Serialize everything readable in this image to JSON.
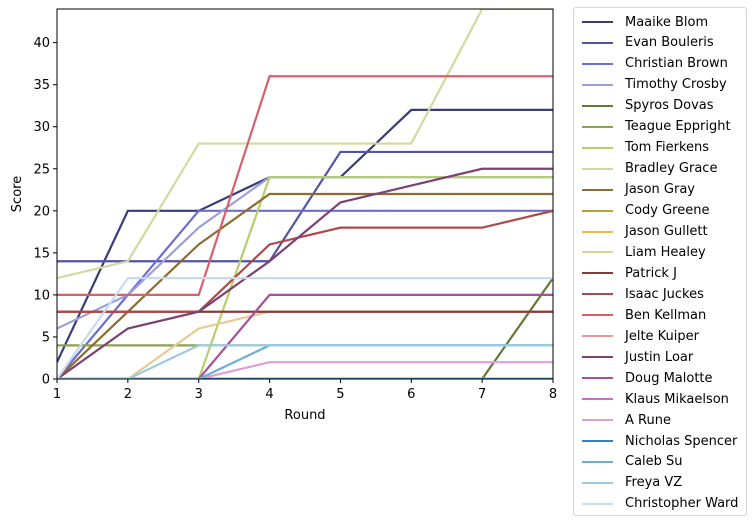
{
  "chart_data": {
    "type": "line",
    "title": "",
    "xlabel": "Round",
    "ylabel": "Score",
    "x": [
      1,
      2,
      3,
      4,
      5,
      6,
      7,
      8
    ],
    "xlim": [
      1,
      8
    ],
    "ylim": [
      0,
      44
    ],
    "x_ticks": [
      "1",
      "2",
      "3",
      "4",
      "5",
      "6",
      "7",
      "8"
    ],
    "y_ticks": [
      "0",
      "5",
      "10",
      "15",
      "20",
      "25",
      "30",
      "35",
      "40"
    ],
    "grid": false,
    "legend_position": "outside right",
    "series": [
      {
        "name": "Maaike Blom",
        "color": "#393b79",
        "values": [
          2,
          20,
          20,
          24,
          24,
          32,
          32,
          32
        ]
      },
      {
        "name": "Evan Bouleris",
        "color": "#5254a3",
        "values": [
          14,
          14,
          14,
          14,
          27,
          27,
          27,
          27
        ]
      },
      {
        "name": "Christian Brown",
        "color": "#6b6ecf",
        "values": [
          0,
          10,
          20,
          20,
          20,
          20,
          20,
          20
        ]
      },
      {
        "name": "Timothy Crosby",
        "color": "#9c9ede",
        "values": [
          6,
          10,
          18,
          24,
          24,
          24,
          24,
          24
        ]
      },
      {
        "name": "Spyros Dovas",
        "color": "#637939",
        "values": [
          0,
          0,
          0,
          0,
          0,
          0,
          0,
          12
        ]
      },
      {
        "name": "Teague Eppright",
        "color": "#8ca252",
        "values": [
          4,
          4,
          4,
          4,
          4,
          4,
          4,
          4
        ]
      },
      {
        "name": "Tom Fierkens",
        "color": "#b5cf6b",
        "values": [
          0,
          0,
          0,
          24,
          24,
          24,
          24,
          24
        ]
      },
      {
        "name": "Bradley Grace",
        "color": "#cedb9c",
        "values": [
          12,
          14,
          28,
          28,
          28,
          28,
          44,
          44
        ]
      },
      {
        "name": "Jason Gray",
        "color": "#8c6d31",
        "values": [
          0,
          8,
          16,
          22,
          22,
          22,
          22,
          22
        ]
      },
      {
        "name": "Cody Greene",
        "color": "#bd9e39",
        "values": [
          0,
          0,
          0,
          0,
          0,
          0,
          0,
          0
        ]
      },
      {
        "name": "Jason Gullett",
        "color": "#e7ba52",
        "values": [
          0,
          0,
          0,
          0,
          0,
          0,
          0,
          0
        ]
      },
      {
        "name": "Liam Healey",
        "color": "#e7cb94",
        "values": [
          0,
          0,
          6,
          8,
          8,
          8,
          8,
          8
        ]
      },
      {
        "name": "Patrick J",
        "color": "#843c39",
        "values": [
          8,
          8,
          8,
          8,
          8,
          8,
          8,
          8
        ]
      },
      {
        "name": "Isaac Juckes",
        "color": "#ad494a",
        "values": [
          8,
          8,
          8,
          16,
          18,
          18,
          18,
          20
        ]
      },
      {
        "name": "Ben Kellman",
        "color": "#d6616b",
        "values": [
          10,
          10,
          10,
          36,
          36,
          36,
          36,
          36
        ]
      },
      {
        "name": "Jelte Kuiper",
        "color": "#e7969c",
        "values": [
          0,
          0,
          0,
          0,
          0,
          0,
          0,
          0
        ]
      },
      {
        "name": "Justin Loar",
        "color": "#7b4173",
        "values": [
          0,
          6,
          8,
          14,
          21,
          23,
          25,
          25
        ]
      },
      {
        "name": "Doug Malotte",
        "color": "#a55194",
        "values": [
          0,
          0,
          0,
          10,
          10,
          10,
          10,
          10
        ]
      },
      {
        "name": "Klaus Mikaelson",
        "color": "#ce6dbd",
        "values": [
          0,
          0,
          0,
          0,
          0,
          0,
          0,
          0
        ]
      },
      {
        "name": "A Rune",
        "color": "#de9ed6",
        "values": [
          0,
          0,
          0,
          2,
          2,
          2,
          2,
          2
        ]
      },
      {
        "name": "Nicholas Spencer",
        "color": "#3182bd",
        "values": [
          0,
          0,
          0,
          0,
          0,
          0,
          0,
          0
        ]
      },
      {
        "name": "Caleb Su",
        "color": "#6baed6",
        "values": [
          0,
          0,
          0,
          4,
          4,
          4,
          4,
          4
        ]
      },
      {
        "name": "Freya VZ",
        "color": "#9ecae1",
        "values": [
          0,
          0,
          4,
          4,
          4,
          4,
          4,
          4
        ]
      },
      {
        "name": "Christopher Ward",
        "color": "#c6dbef",
        "values": [
          0,
          12,
          12,
          12,
          12,
          12,
          12,
          12
        ]
      }
    ]
  }
}
